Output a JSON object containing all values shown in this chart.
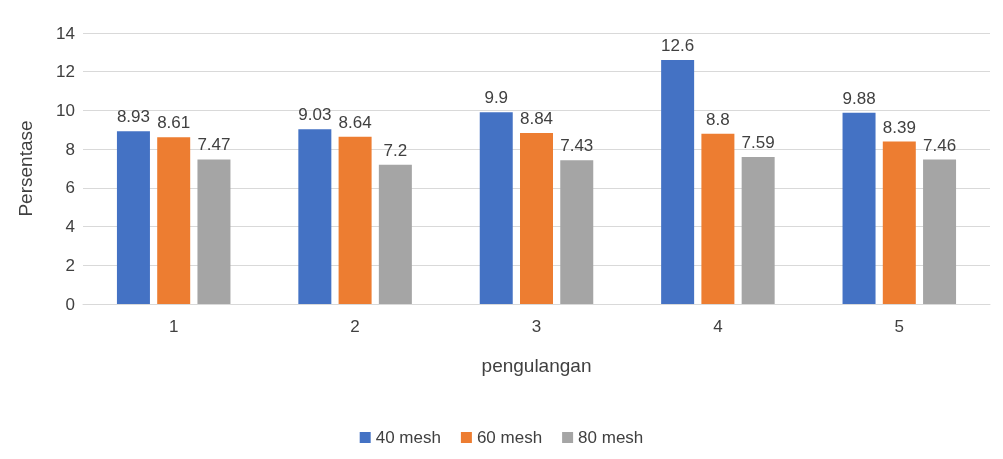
{
  "chart_data": {
    "type": "bar",
    "xlabel": "pengulangan",
    "ylabel": "Persentase",
    "categories": [
      "1",
      "2",
      "3",
      "4",
      "5"
    ],
    "series": [
      {
        "name": "40 mesh",
        "color": "#4472c4",
        "values": [
          8.93,
          9.03,
          9.9,
          12.6,
          9.88
        ]
      },
      {
        "name": "60 mesh",
        "color": "#ed7d31",
        "values": [
          8.61,
          8.64,
          8.84,
          8.8,
          8.39
        ]
      },
      {
        "name": "80 mesh",
        "color": "#a5a5a5",
        "values": [
          7.47,
          7.2,
          7.43,
          7.59,
          7.46
        ]
      }
    ],
    "ylim": [
      0,
      14
    ],
    "yticks": [
      0,
      2,
      4,
      6,
      8,
      10,
      12,
      14
    ],
    "grid": "y",
    "legend": "bottom",
    "data_labels": true
  }
}
